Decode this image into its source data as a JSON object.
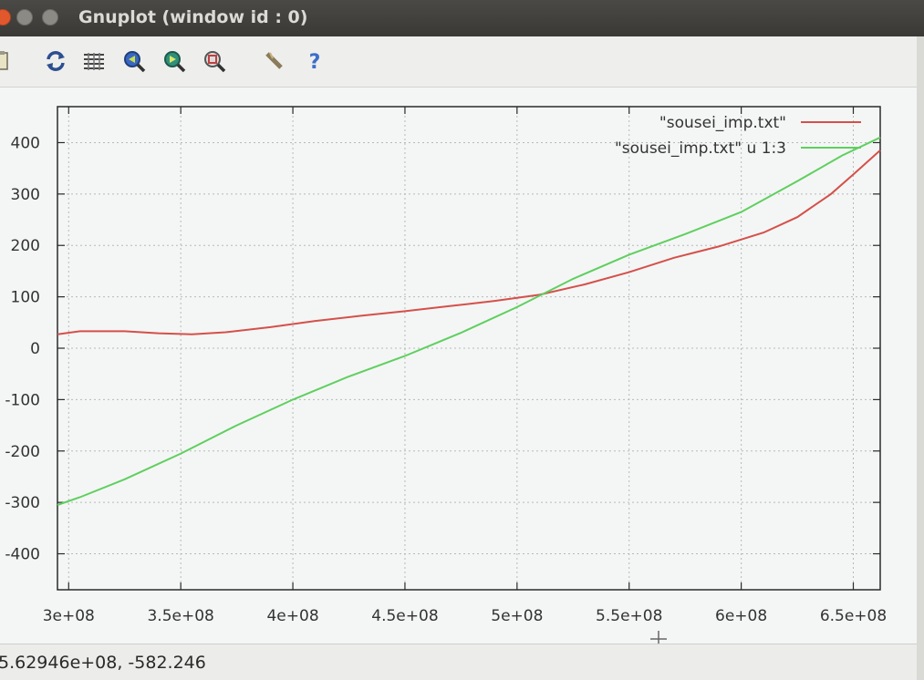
{
  "window": {
    "title": "Gnuplot (window id : 0)"
  },
  "toolbar": {
    "tools": [
      {
        "name": "copy-to-clipboard-icon"
      },
      {
        "name": "replot-icon"
      },
      {
        "name": "grid-icon"
      },
      {
        "name": "zoom-previous-icon"
      },
      {
        "name": "zoom-next-icon"
      },
      {
        "name": "autoscale-icon"
      },
      {
        "name": "settings-icon"
      },
      {
        "name": "help-icon"
      }
    ]
  },
  "status": {
    "coordinates": "5.62946e+08, -582.246"
  },
  "colors": {
    "series1": "#d5504a",
    "series2": "#5fcf5f",
    "grid": "#b8b8b8"
  },
  "chart_data": {
    "type": "line",
    "xlim": [
      295000000,
      662000000
    ],
    "ylim": [
      -470,
      470
    ],
    "xticks": [
      300000000,
      350000000,
      400000000,
      450000000,
      500000000,
      550000000,
      600000000,
      650000000
    ],
    "xtick_labels": [
      "3e+08",
      "3.5e+08",
      "4e+08",
      "4.5e+08",
      "5e+08",
      "5.5e+08",
      "6e+08",
      "6.5e+08"
    ],
    "yticks": [
      400,
      300,
      200,
      100,
      0,
      -100,
      -200,
      -300,
      -400
    ],
    "ytick_labels": [
      "400",
      "300",
      "200",
      "100",
      "0",
      "-100",
      "-200",
      "-300",
      "-400"
    ],
    "grid": true,
    "legend_position": "top-right",
    "series": [
      {
        "name": "\"sousei_imp.txt\"",
        "x": [
          295000000,
          305000000,
          325000000,
          340000000,
          355000000,
          370000000,
          390000000,
          410000000,
          430000000,
          450000000,
          470000000,
          490000000,
          510000000,
          530000000,
          550000000,
          570000000,
          590000000,
          610000000,
          625000000,
          640000000,
          650000000,
          662000000
        ],
        "y": [
          27,
          33,
          33,
          29,
          27,
          31,
          41,
          53,
          63,
          72,
          82,
          92,
          104,
          124,
          148,
          176,
          198,
          225,
          255,
          300,
          338,
          385
        ]
      },
      {
        "name": "\"sousei_imp.txt\" u 1:3",
        "x": [
          295000000,
          305000000,
          325000000,
          350000000,
          375000000,
          400000000,
          425000000,
          450000000,
          475000000,
          500000000,
          525000000,
          550000000,
          575000000,
          600000000,
          625000000,
          645000000,
          662000000
        ],
        "y": [
          -305,
          -290,
          -255,
          -205,
          -150,
          -100,
          -55,
          -15,
          30,
          80,
          135,
          182,
          222,
          265,
          325,
          375,
          410
        ]
      }
    ]
  }
}
